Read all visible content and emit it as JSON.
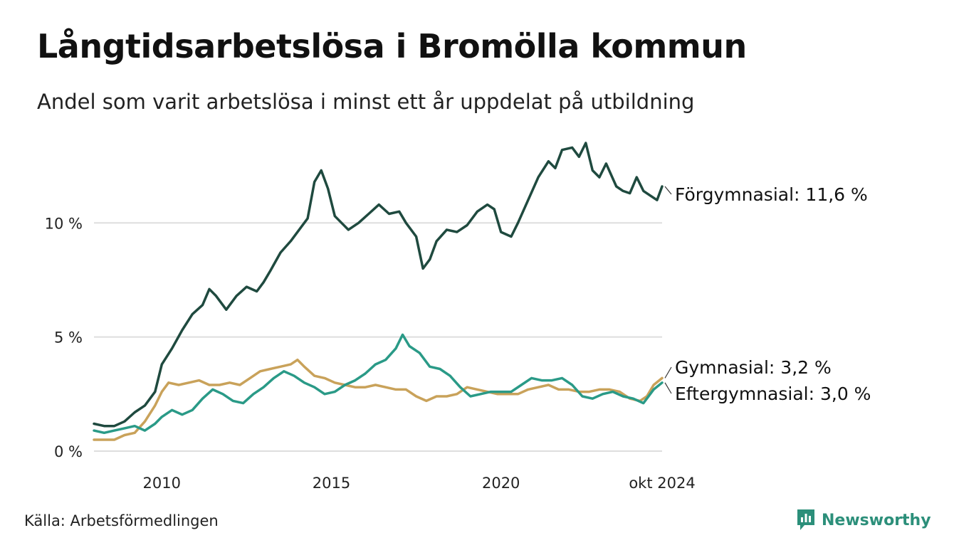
{
  "title": "Långtidsarbetslösa i Bromölla kommun",
  "subtitle": "Andel som varit arbetslösa i minst ett år uppdelat på utbildning",
  "source": "Källa: Arbetsförmedlingen",
  "brand": "Newsworthy",
  "chart_data": {
    "type": "line",
    "x_start": "2008-01",
    "x_end": "2024-10",
    "x_ticks": [
      {
        "label": "2010",
        "value": 2010
      },
      {
        "label": "2015",
        "value": 2015
      },
      {
        "label": "2020",
        "value": 2020
      },
      {
        "label": "okt 2024",
        "value": 2024.75
      }
    ],
    "y_ticks": [
      {
        "label": "0 %",
        "value": 0
      },
      {
        "label": "5 %",
        "value": 5
      },
      {
        "label": "10 %",
        "value": 10
      }
    ],
    "ylim": [
      0,
      14
    ],
    "grid": true,
    "series": [
      {
        "name": "Förgymnasial",
        "label": "Förgymnasial: 11,6 %",
        "color": "#1f4a3f",
        "points": [
          [
            2008.0,
            1.2
          ],
          [
            2008.3,
            1.1
          ],
          [
            2008.6,
            1.1
          ],
          [
            2008.9,
            1.3
          ],
          [
            2009.2,
            1.7
          ],
          [
            2009.5,
            2.0
          ],
          [
            2009.8,
            2.6
          ],
          [
            2010.0,
            3.8
          ],
          [
            2010.3,
            4.5
          ],
          [
            2010.6,
            5.3
          ],
          [
            2010.9,
            6.0
          ],
          [
            2011.2,
            6.4
          ],
          [
            2011.4,
            7.1
          ],
          [
            2011.6,
            6.8
          ],
          [
            2011.9,
            6.2
          ],
          [
            2012.2,
            6.8
          ],
          [
            2012.5,
            7.2
          ],
          [
            2012.8,
            7.0
          ],
          [
            2013.0,
            7.4
          ],
          [
            2013.2,
            7.9
          ],
          [
            2013.5,
            8.7
          ],
          [
            2013.8,
            9.2
          ],
          [
            2014.1,
            9.8
          ],
          [
            2014.3,
            10.2
          ],
          [
            2014.5,
            11.8
          ],
          [
            2014.7,
            12.3
          ],
          [
            2014.9,
            11.5
          ],
          [
            2015.1,
            10.3
          ],
          [
            2015.3,
            10.0
          ],
          [
            2015.5,
            9.7
          ],
          [
            2015.8,
            10.0
          ],
          [
            2016.1,
            10.4
          ],
          [
            2016.4,
            10.8
          ],
          [
            2016.7,
            10.4
          ],
          [
            2017.0,
            10.5
          ],
          [
            2017.2,
            10.0
          ],
          [
            2017.5,
            9.4
          ],
          [
            2017.7,
            8.0
          ],
          [
            2017.9,
            8.4
          ],
          [
            2018.1,
            9.2
          ],
          [
            2018.4,
            9.7
          ],
          [
            2018.7,
            9.6
          ],
          [
            2019.0,
            9.9
          ],
          [
            2019.3,
            10.5
          ],
          [
            2019.6,
            10.8
          ],
          [
            2019.8,
            10.6
          ],
          [
            2020.0,
            9.6
          ],
          [
            2020.3,
            9.4
          ],
          [
            2020.5,
            10.0
          ],
          [
            2020.8,
            11.0
          ],
          [
            2021.1,
            12.0
          ],
          [
            2021.4,
            12.7
          ],
          [
            2021.6,
            12.4
          ],
          [
            2021.8,
            13.2
          ],
          [
            2022.1,
            13.3
          ],
          [
            2022.3,
            12.9
          ],
          [
            2022.5,
            13.5
          ],
          [
            2022.7,
            12.3
          ],
          [
            2022.9,
            12.0
          ],
          [
            2023.1,
            12.6
          ],
          [
            2023.4,
            11.6
          ],
          [
            2023.6,
            11.4
          ],
          [
            2023.8,
            11.3
          ],
          [
            2024.0,
            12.0
          ],
          [
            2024.2,
            11.4
          ],
          [
            2024.4,
            11.2
          ],
          [
            2024.6,
            11.0
          ],
          [
            2024.75,
            11.6
          ]
        ]
      },
      {
        "name": "Gymnasial",
        "label": "Gymnasial:  3,2 %",
        "color": "#c9a25a",
        "points": [
          [
            2008.0,
            0.5
          ],
          [
            2008.3,
            0.5
          ],
          [
            2008.6,
            0.5
          ],
          [
            2008.9,
            0.7
          ],
          [
            2009.2,
            0.8
          ],
          [
            2009.5,
            1.3
          ],
          [
            2009.8,
            2.0
          ],
          [
            2010.0,
            2.6
          ],
          [
            2010.2,
            3.0
          ],
          [
            2010.5,
            2.9
          ],
          [
            2010.8,
            3.0
          ],
          [
            2011.1,
            3.1
          ],
          [
            2011.4,
            2.9
          ],
          [
            2011.7,
            2.9
          ],
          [
            2012.0,
            3.0
          ],
          [
            2012.3,
            2.9
          ],
          [
            2012.6,
            3.2
          ],
          [
            2012.9,
            3.5
          ],
          [
            2013.2,
            3.6
          ],
          [
            2013.5,
            3.7
          ],
          [
            2013.8,
            3.8
          ],
          [
            2014.0,
            4.0
          ],
          [
            2014.2,
            3.7
          ],
          [
            2014.5,
            3.3
          ],
          [
            2014.8,
            3.2
          ],
          [
            2015.1,
            3.0
          ],
          [
            2015.4,
            2.9
          ],
          [
            2015.7,
            2.8
          ],
          [
            2016.0,
            2.8
          ],
          [
            2016.3,
            2.9
          ],
          [
            2016.6,
            2.8
          ],
          [
            2016.9,
            2.7
          ],
          [
            2017.2,
            2.7
          ],
          [
            2017.5,
            2.4
          ],
          [
            2017.8,
            2.2
          ],
          [
            2018.1,
            2.4
          ],
          [
            2018.4,
            2.4
          ],
          [
            2018.7,
            2.5
          ],
          [
            2019.0,
            2.8
          ],
          [
            2019.3,
            2.7
          ],
          [
            2019.6,
            2.6
          ],
          [
            2019.9,
            2.5
          ],
          [
            2020.2,
            2.5
          ],
          [
            2020.5,
            2.5
          ],
          [
            2020.8,
            2.7
          ],
          [
            2021.1,
            2.8
          ],
          [
            2021.4,
            2.9
          ],
          [
            2021.7,
            2.7
          ],
          [
            2022.0,
            2.7
          ],
          [
            2022.3,
            2.6
          ],
          [
            2022.6,
            2.6
          ],
          [
            2022.9,
            2.7
          ],
          [
            2023.2,
            2.7
          ],
          [
            2023.5,
            2.6
          ],
          [
            2023.8,
            2.3
          ],
          [
            2024.1,
            2.2
          ],
          [
            2024.3,
            2.4
          ],
          [
            2024.5,
            2.9
          ],
          [
            2024.75,
            3.2
          ]
        ]
      },
      {
        "name": "Eftergymnasial",
        "label": "Eftergymnasial:  3,0 %",
        "color": "#2a9a87",
        "points": [
          [
            2008.0,
            0.9
          ],
          [
            2008.3,
            0.8
          ],
          [
            2008.6,
            0.9
          ],
          [
            2008.9,
            1.0
          ],
          [
            2009.2,
            1.1
          ],
          [
            2009.5,
            0.9
          ],
          [
            2009.8,
            1.2
          ],
          [
            2010.0,
            1.5
          ],
          [
            2010.3,
            1.8
          ],
          [
            2010.6,
            1.6
          ],
          [
            2010.9,
            1.8
          ],
          [
            2011.2,
            2.3
          ],
          [
            2011.5,
            2.7
          ],
          [
            2011.8,
            2.5
          ],
          [
            2012.1,
            2.2
          ],
          [
            2012.4,
            2.1
          ],
          [
            2012.7,
            2.5
          ],
          [
            2013.0,
            2.8
          ],
          [
            2013.3,
            3.2
          ],
          [
            2013.6,
            3.5
          ],
          [
            2013.9,
            3.3
          ],
          [
            2014.2,
            3.0
          ],
          [
            2014.5,
            2.8
          ],
          [
            2014.8,
            2.5
          ],
          [
            2015.1,
            2.6
          ],
          [
            2015.4,
            2.9
          ],
          [
            2015.7,
            3.1
          ],
          [
            2016.0,
            3.4
          ],
          [
            2016.3,
            3.8
          ],
          [
            2016.6,
            4.0
          ],
          [
            2016.9,
            4.5
          ],
          [
            2017.1,
            5.1
          ],
          [
            2017.3,
            4.6
          ],
          [
            2017.6,
            4.3
          ],
          [
            2017.9,
            3.7
          ],
          [
            2018.2,
            3.6
          ],
          [
            2018.5,
            3.3
          ],
          [
            2018.8,
            2.8
          ],
          [
            2019.1,
            2.4
          ],
          [
            2019.4,
            2.5
          ],
          [
            2019.7,
            2.6
          ],
          [
            2020.0,
            2.6
          ],
          [
            2020.3,
            2.6
          ],
          [
            2020.6,
            2.9
          ],
          [
            2020.9,
            3.2
          ],
          [
            2021.2,
            3.1
          ],
          [
            2021.5,
            3.1
          ],
          [
            2021.8,
            3.2
          ],
          [
            2022.1,
            2.9
          ],
          [
            2022.4,
            2.4
          ],
          [
            2022.7,
            2.3
          ],
          [
            2023.0,
            2.5
          ],
          [
            2023.3,
            2.6
          ],
          [
            2023.6,
            2.4
          ],
          [
            2023.9,
            2.3
          ],
          [
            2024.2,
            2.1
          ],
          [
            2024.5,
            2.7
          ],
          [
            2024.75,
            3.0
          ]
        ]
      }
    ]
  }
}
